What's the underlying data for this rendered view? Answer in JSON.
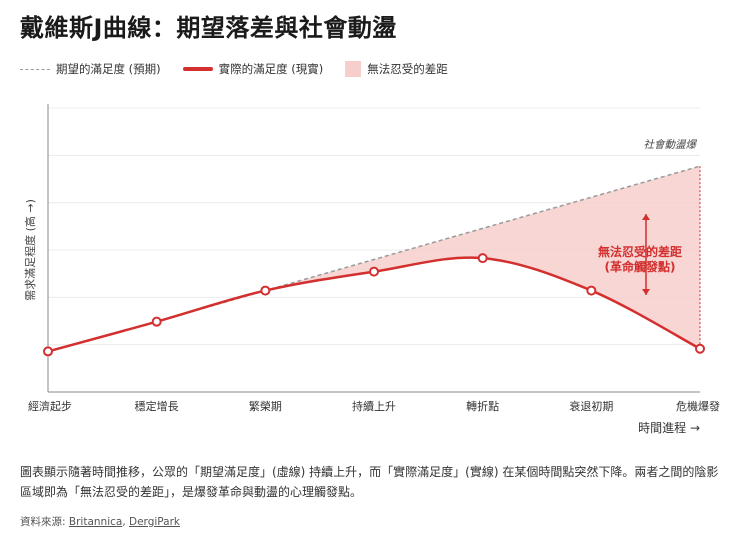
{
  "title": "戴維斯J曲線：期望落差與社會動盪",
  "legend": {
    "expected": "期望的滿足度 (預期)",
    "actual": "實際的滿足度 (現實)",
    "gap": "無法忍受的差距"
  },
  "colors": {
    "actual": "#d32f2f",
    "expected": "#9a9a9a",
    "gap": "#f6cfcc",
    "grid": "#ececec"
  },
  "chart_data": {
    "type": "line",
    "categories": [
      "經濟起步",
      "穩定增長",
      "繁榮期",
      "持續上升",
      "轉折點",
      "衰退初期",
      "危機爆發"
    ],
    "series": [
      {
        "name": "期望的滿足度 (預期)",
        "style": "dashed",
        "values": [
          10,
          32,
          55,
          78,
          101,
          124,
          147
        ]
      },
      {
        "name": "實際的滿足度 (現實)",
        "style": "solid",
        "values": [
          10,
          32,
          55,
          69,
          79,
          55,
          12
        ]
      }
    ],
    "ylim": [
      -20,
      190
    ],
    "xlabel": "時間進程 →",
    "ylabel": "需求滿足程度 (高 →)",
    "grid": true,
    "annotations": {
      "top": "社會動盪爆",
      "gap_line1": "無法忍受的差距",
      "gap_line2": "(革命觸發點)"
    }
  },
  "description": "圖表顯示隨著時間推移，公眾的「期望滿足度」(虛線) 持續上升，而「實際滿足度」(實線) 在某個時間點突然下降。兩者之間的陰影區域即為「無法忍受的差距」，是爆發革命與動盪的心理觸發點。",
  "source": {
    "label": "資料來源:",
    "links": [
      "Britannica",
      "DergiPark"
    ]
  }
}
